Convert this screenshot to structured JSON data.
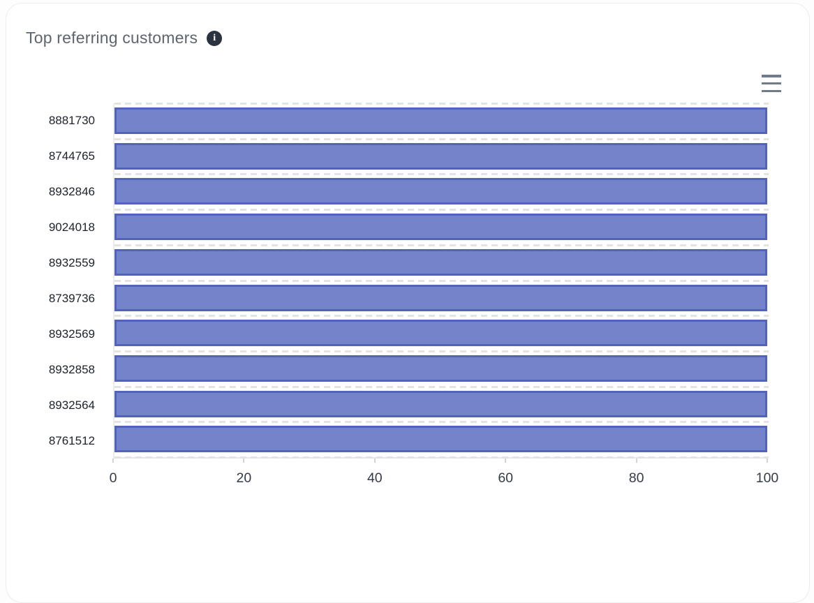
{
  "header": {
    "title": "Top referring customers",
    "info_glyph": "i"
  },
  "colors": {
    "bar_fill": "#7384CA",
    "bar_border": "#5164B9",
    "gridline": "#E3E3E5",
    "axis_line": "#E6E6E8",
    "axis_label": "#343B46",
    "cat_label": "#1D222B",
    "title_text": "#5D6670",
    "info_bg": "#2B3240",
    "menu_icon": "#6F7C8C",
    "card_bg": "#FFFFFF",
    "page_bg": "#FDFDFD"
  },
  "chart_data": {
    "type": "bar",
    "orientation": "horizontal",
    "title": "Top referring customers",
    "categories": [
      "8881730",
      "8744765",
      "8932846",
      "9024018",
      "8932559",
      "8739736",
      "8932569",
      "8932858",
      "8932564",
      "8761512"
    ],
    "values": [
      100,
      100,
      100,
      100,
      100,
      100,
      100,
      100,
      100,
      100
    ],
    "xlabel": "",
    "ylabel": "",
    "xlim": [
      0,
      100
    ],
    "x_ticks": [
      0,
      20,
      40,
      60,
      80,
      100
    ],
    "grid": "dashed-horizontal-between-rows",
    "legend": "none"
  }
}
